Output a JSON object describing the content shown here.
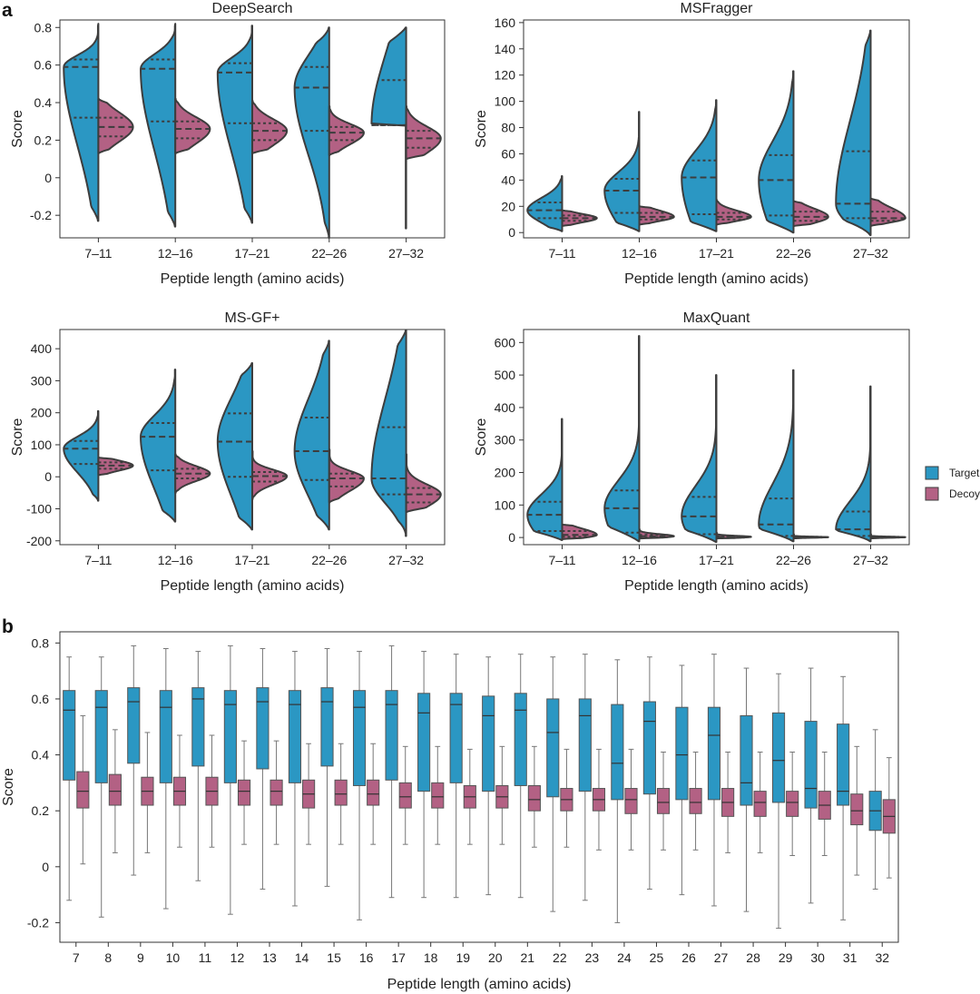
{
  "panel_labels": {
    "a": "a",
    "b": "b"
  },
  "colors": {
    "target": "#2b97c3",
    "decoy": "#b36184",
    "outline": "#3d3d3d"
  },
  "legend": {
    "target": "Target",
    "decoy": "Decoy"
  },
  "chart_data": [
    {
      "type": "violin",
      "title": "DeepSearch",
      "xlabel": "Peptide length (amino acids)",
      "ylabel": "Score",
      "ylim": [
        -0.32,
        0.84
      ],
      "yticks": [
        -0.2,
        0,
        0.2,
        0.4,
        0.6,
        0.8
      ],
      "ytick_labels": [
        "-0.2",
        "0",
        "0.2",
        "0.4",
        "0.6",
        "0.8"
      ],
      "categories": [
        "7–11",
        "12–16",
        "17–21",
        "22–26",
        "27–32"
      ],
      "series": [
        {
          "name": "Target",
          "min": [
            -0.23,
            -0.26,
            -0.24,
            -0.32,
            -0.27
          ],
          "max": [
            0.82,
            0.82,
            0.81,
            0.8,
            0.8
          ],
          "q1": [
            0.32,
            0.3,
            0.29,
            0.25,
            0.28
          ],
          "median": [
            0.59,
            0.58,
            0.56,
            0.48,
            0.28
          ],
          "q3": [
            0.63,
            0.63,
            0.61,
            0.59,
            0.52
          ]
        },
        {
          "name": "Decoy",
          "min": [
            0.13,
            0.13,
            0.13,
            0.12,
            0.1
          ],
          "max": [
            0.42,
            0.42,
            0.41,
            0.38,
            0.38
          ],
          "q1": [
            0.22,
            0.21,
            0.2,
            0.2,
            0.16
          ],
          "median": [
            0.27,
            0.26,
            0.25,
            0.24,
            0.21
          ],
          "q3": [
            0.32,
            0.3,
            0.29,
            0.27,
            0.25
          ]
        }
      ]
    },
    {
      "type": "violin",
      "title": "MSFragger",
      "xlabel": "Peptide length (amino acids)",
      "ylabel": "Score",
      "ylim": [
        -4,
        162
      ],
      "yticks": [
        0,
        20,
        40,
        60,
        80,
        100,
        120,
        140,
        160
      ],
      "ytick_labels": [
        "0",
        "20",
        "40",
        "60",
        "80",
        "100",
        "120",
        "140",
        "160"
      ],
      "categories": [
        "7–11",
        "12–16",
        "17–21",
        "22–26",
        "27–32"
      ],
      "series": [
        {
          "name": "Target",
          "min": [
            1,
            1,
            1,
            0,
            -2
          ],
          "max": [
            43,
            92,
            101,
            123,
            154
          ],
          "q1": [
            11,
            15,
            14,
            13,
            11
          ],
          "median": [
            17,
            32,
            42,
            40,
            22
          ],
          "q3": [
            23,
            41,
            55,
            59,
            62
          ]
        },
        {
          "name": "Decoy",
          "min": [
            5,
            6,
            6,
            5,
            5
          ],
          "max": [
            17,
            20,
            25,
            24,
            26
          ],
          "q1": [
            9,
            10,
            10,
            9,
            9
          ],
          "median": [
            11,
            12,
            12,
            12,
            11
          ],
          "q3": [
            13,
            15,
            15,
            16,
            16
          ]
        }
      ]
    },
    {
      "type": "violin",
      "title": "MS-GF+",
      "xlabel": "Peptide length (amino acids)",
      "ylabel": "Score",
      "ylim": [
        -212,
        460
      ],
      "yticks": [
        -200,
        -100,
        0,
        100,
        200,
        300,
        400
      ],
      "ytick_labels": [
        "-200",
        "-100",
        "0",
        "100",
        "200",
        "300",
        "400"
      ],
      "categories": [
        "7–11",
        "12–16",
        "17–21",
        "22–26",
        "27–32"
      ],
      "series": [
        {
          "name": "Target",
          "min": [
            -75,
            -140,
            -165,
            -165,
            -185
          ],
          "max": [
            205,
            335,
            355,
            425,
            458
          ],
          "q1": [
            40,
            20,
            0,
            -10,
            -55
          ],
          "median": [
            88,
            125,
            110,
            80,
            -5
          ],
          "q3": [
            112,
            168,
            198,
            185,
            155
          ]
        },
        {
          "name": "Decoy",
          "min": [
            5,
            -50,
            -70,
            -80,
            -110
          ],
          "max": [
            60,
            70,
            80,
            85,
            70
          ],
          "q1": [
            25,
            -5,
            -15,
            -30,
            -80
          ],
          "median": [
            35,
            10,
            2,
            -5,
            -55
          ],
          "q3": [
            45,
            25,
            15,
            10,
            -35
          ]
        }
      ]
    },
    {
      "type": "violin",
      "title": "MaxQuant",
      "xlabel": "Peptide length (amino acids)",
      "ylabel": "Score",
      "ylim": [
        -22,
        640
      ],
      "yticks": [
        0,
        100,
        200,
        300,
        400,
        500,
        600
      ],
      "ytick_labels": [
        "0",
        "100",
        "200",
        "300",
        "400",
        "500",
        "600"
      ],
      "categories": [
        "7–11",
        "12–16",
        "17–21",
        "22–26",
        "27–32"
      ],
      "series": [
        {
          "name": "Target",
          "min": [
            -8,
            -12,
            -14,
            -12,
            -12
          ],
          "max": [
            365,
            620,
            500,
            515,
            465
          ],
          "q1": [
            20,
            15,
            10,
            5,
            5
          ],
          "median": [
            70,
            90,
            65,
            40,
            25
          ],
          "q3": [
            110,
            145,
            125,
            120,
            80
          ]
        },
        {
          "name": "Decoy",
          "min": [
            -5,
            -3,
            -3,
            -3,
            -3
          ],
          "max": [
            40,
            25,
            15,
            10,
            10
          ],
          "q1": [
            2,
            1,
            0,
            0,
            0
          ],
          "median": [
            8,
            4,
            2,
            1,
            1
          ],
          "q3": [
            20,
            8,
            4,
            2,
            2
          ]
        }
      ]
    },
    {
      "type": "box",
      "xlabel": "Peptide length (amino acids)",
      "ylabel": "Score",
      "ylim": [
        -0.27,
        0.84
      ],
      "yticks": [
        -0.2,
        0,
        0.2,
        0.4,
        0.6,
        0.8
      ],
      "ytick_labels": [
        "-0.2",
        "0",
        "0.2",
        "0.4",
        "0.6",
        "0.8"
      ],
      "categories": [
        "7",
        "8",
        "9",
        "10",
        "11",
        "12",
        "13",
        "14",
        "15",
        "16",
        "17",
        "18",
        "19",
        "20",
        "21",
        "22",
        "23",
        "24",
        "25",
        "26",
        "27",
        "28",
        "29",
        "30",
        "31",
        "32"
      ],
      "series": [
        {
          "name": "Target",
          "whisker_low": [
            -0.12,
            -0.18,
            -0.03,
            -0.15,
            -0.05,
            -0.17,
            -0.08,
            -0.14,
            -0.07,
            -0.19,
            -0.11,
            -0.11,
            -0.11,
            -0.1,
            -0.11,
            -0.16,
            -0.12,
            -0.2,
            -0.08,
            -0.1,
            -0.14,
            -0.16,
            -0.22,
            -0.13,
            -0.19,
            -0.08
          ],
          "q1": [
            0.31,
            0.3,
            0.37,
            0.3,
            0.36,
            0.3,
            0.35,
            0.3,
            0.36,
            0.29,
            0.31,
            0.27,
            0.3,
            0.27,
            0.29,
            0.25,
            0.27,
            0.24,
            0.26,
            0.24,
            0.24,
            0.22,
            0.23,
            0.21,
            0.22,
            0.13
          ],
          "median": [
            0.56,
            0.57,
            0.59,
            0.57,
            0.6,
            0.58,
            0.59,
            0.58,
            0.59,
            0.57,
            0.58,
            0.55,
            0.58,
            0.54,
            0.56,
            0.48,
            0.54,
            0.37,
            0.52,
            0.4,
            0.47,
            0.3,
            0.38,
            0.28,
            0.27,
            0.2
          ],
          "q3": [
            0.63,
            0.63,
            0.64,
            0.63,
            0.64,
            0.63,
            0.64,
            0.63,
            0.64,
            0.63,
            0.63,
            0.62,
            0.62,
            0.61,
            0.62,
            0.6,
            0.6,
            0.58,
            0.59,
            0.57,
            0.57,
            0.54,
            0.55,
            0.52,
            0.51,
            0.27
          ],
          "whisker_high": [
            0.75,
            0.75,
            0.79,
            0.78,
            0.77,
            0.79,
            0.78,
            0.77,
            0.78,
            0.77,
            0.79,
            0.77,
            0.76,
            0.75,
            0.76,
            0.75,
            0.76,
            0.74,
            0.75,
            0.72,
            0.76,
            0.71,
            0.69,
            0.71,
            0.68,
            0.49
          ]
        },
        {
          "name": "Decoy",
          "whisker_low": [
            0.01,
            0.05,
            0.05,
            0.07,
            0.07,
            0.08,
            0.08,
            0.08,
            0.08,
            0.08,
            0.08,
            0.08,
            0.08,
            0.08,
            0.07,
            0.07,
            0.06,
            0.06,
            0.06,
            0.06,
            0.05,
            0.05,
            0.04,
            0.04,
            -0.03,
            -0.04
          ],
          "q1": [
            0.21,
            0.22,
            0.22,
            0.22,
            0.22,
            0.22,
            0.22,
            0.21,
            0.22,
            0.22,
            0.21,
            0.21,
            0.21,
            0.21,
            0.2,
            0.2,
            0.2,
            0.19,
            0.19,
            0.19,
            0.18,
            0.18,
            0.18,
            0.17,
            0.15,
            0.12
          ],
          "median": [
            0.27,
            0.27,
            0.27,
            0.27,
            0.27,
            0.27,
            0.27,
            0.26,
            0.26,
            0.26,
            0.25,
            0.25,
            0.25,
            0.25,
            0.24,
            0.24,
            0.24,
            0.24,
            0.23,
            0.23,
            0.23,
            0.23,
            0.23,
            0.22,
            0.2,
            0.18
          ],
          "q3": [
            0.34,
            0.33,
            0.32,
            0.32,
            0.32,
            0.31,
            0.31,
            0.31,
            0.31,
            0.31,
            0.3,
            0.3,
            0.29,
            0.29,
            0.29,
            0.28,
            0.28,
            0.28,
            0.28,
            0.28,
            0.28,
            0.27,
            0.27,
            0.27,
            0.26,
            0.24
          ],
          "whisker_high": [
            0.54,
            0.49,
            0.48,
            0.47,
            0.47,
            0.45,
            0.45,
            0.44,
            0.44,
            0.44,
            0.43,
            0.43,
            0.42,
            0.43,
            0.43,
            0.42,
            0.42,
            0.42,
            0.41,
            0.41,
            0.41,
            0.41,
            0.41,
            0.41,
            0.43,
            0.39
          ]
        }
      ]
    }
  ]
}
